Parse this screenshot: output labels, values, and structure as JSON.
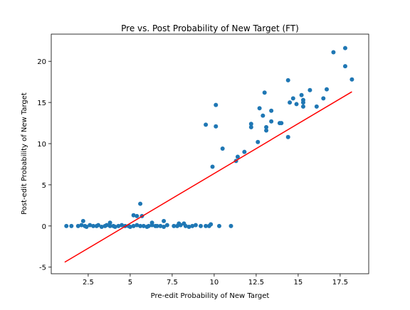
{
  "chart_data": {
    "type": "scatter",
    "title": "Pre vs. Post Probability of New Target (FT)",
    "x_label": "Pre-edit Probability of New Target",
    "y_label": "Post-edit Probability of New Target",
    "color": "#1f77b4",
    "x": [
      9.5,
      10.1,
      10.1,
      10.5,
      9.9,
      11.3,
      11.4,
      11.8,
      12.2,
      12.2,
      12.6,
      12.7,
      12.9,
      13.0,
      13.1,
      13.1,
      13.4,
      13.4,
      13.9,
      14.0,
      14.4,
      14.5,
      14.7,
      14.4,
      14.9,
      15.2,
      15.3,
      15.3,
      15.3,
      15.7,
      16.1,
      16.5,
      16.7,
      17.1,
      17.8,
      17.8,
      18.2,
      5.6,
      5.2,
      5.4,
      5.7,
      2.2,
      3.8,
      6.3,
      7.0,
      8.2,
      9.8,
      7.9,
      1.2,
      1.5,
      1.9,
      2.1,
      2.3,
      2.4,
      2.6,
      2.8,
      3.0,
      3.1,
      3.3,
      3.5,
      3.6,
      3.8,
      4.0,
      4.1,
      4.3,
      4.5,
      4.7,
      4.9,
      5.0,
      5.2,
      5.4,
      5.6,
      5.8,
      6.0,
      6.1,
      6.3,
      6.5,
      6.6,
      6.8,
      7.0,
      7.2,
      7.6,
      7.8,
      8.0,
      8.3,
      8.5,
      8.7,
      8.9,
      9.2,
      9.5,
      9.7,
      10.3,
      11.0
    ],
    "y": [
      12.3,
      14.7,
      12.1,
      9.4,
      7.2,
      7.9,
      8.4,
      9.0,
      12.0,
      12.4,
      10.2,
      14.3,
      13.4,
      16.2,
      12.0,
      11.6,
      14.0,
      12.7,
      12.5,
      12.5,
      17.7,
      15.0,
      15.5,
      10.8,
      14.8,
      15.9,
      15.3,
      14.5,
      15.0,
      16.5,
      14.5,
      15.5,
      16.6,
      21.1,
      21.6,
      19.4,
      17.8,
      2.7,
      1.3,
      1.2,
      1.2,
      0.6,
      0.4,
      0.4,
      0.6,
      0.3,
      0.2,
      0.3,
      0,
      0,
      0,
      0.1,
      0,
      -0.1,
      0.1,
      0,
      0,
      0.1,
      -0.1,
      0,
      0.1,
      0,
      0,
      -0.1,
      0,
      0.1,
      0,
      0,
      -0.1,
      0,
      0.1,
      0,
      0,
      -0.1,
      0,
      0.1,
      0,
      0,
      0,
      -0.1,
      0.1,
      0,
      0,
      0.1,
      0,
      -0.1,
      0,
      0.1,
      0,
      0,
      0,
      0,
      0
    ],
    "fit_line": {
      "color": "#ff0000",
      "x": [
        1.1,
        18.2
      ],
      "y": [
        -4.4,
        16.3
      ]
    },
    "xlim": [
      0.3,
      19.2
    ],
    "ylim": [
      -5.8,
      23.3
    ],
    "xticks": [
      2.5,
      5.0,
      7.5,
      10.0,
      12.5,
      15.0,
      17.5
    ],
    "yticks": [
      -5,
      0,
      5,
      10,
      15,
      20
    ]
  }
}
